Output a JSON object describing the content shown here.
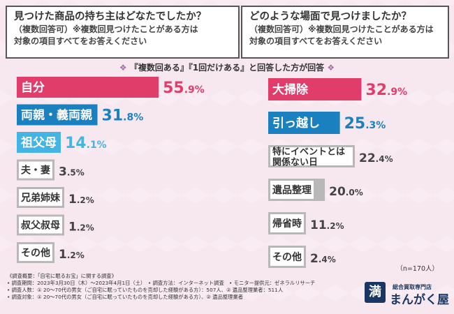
{
  "questions": {
    "left": {
      "line1": "見つけた商品の持ち主はどなたでしたか？",
      "line2": "（複数回答可）※複数回見つけたことがある方は",
      "line3": "対象の項目すべてをお答えください"
    },
    "right": {
      "line1": "どのような場面で見つけましたか？",
      "line2": "（複数回答可）※複数回見つけたことがある方は",
      "line3": "対象の項目すべてをお答えください"
    }
  },
  "subtitle": "『複数回ある』『1回だけある』と回答した方が回答",
  "chart_data": [
    {
      "type": "bar",
      "orientation": "horizontal",
      "title": "見つけた商品の持ち主はどなたでしたか？",
      "categories": [
        [
          "自分"
        ],
        [
          "両親・義両親"
        ],
        [
          "祖父母"
        ],
        [
          "夫・妻"
        ],
        [
          "兄弟姉妹"
        ],
        [
          "叔父叔母"
        ],
        [
          "その他"
        ]
      ],
      "values": [
        55.9,
        31.8,
        14.1,
        3.5,
        1.2,
        1.2,
        1.2
      ],
      "unit": "%",
      "xlim": [
        0,
        60
      ],
      "colors": [
        "#e03d6b",
        "#1a80c0",
        "#44b4e4",
        "#b8b8b8",
        "#b8b8b8",
        "#b8b8b8",
        "#b8b8b8"
      ]
    },
    {
      "type": "bar",
      "orientation": "horizontal",
      "title": "どのような場面で見つけましたか？",
      "categories": [
        [
          "大掃除"
        ],
        [
          "引っ越し"
        ],
        [
          "特にイベントとは",
          "関係ない日"
        ],
        [
          "遺品整理"
        ],
        [
          "帰省時"
        ],
        [
          "その他"
        ]
      ],
      "values": [
        32.9,
        25.3,
        22.4,
        20.0,
        11.2,
        2.4
      ],
      "unit": "%",
      "xlim": [
        0,
        36
      ],
      "colors": [
        "#e03d6b",
        "#1a80c0",
        "#b8b8b8",
        "#b8b8b8",
        "#b8b8b8",
        "#b8b8b8"
      ]
    }
  ],
  "sample_note": "（n=170人）",
  "footer": {
    "l1": "《調査概要：「自宅に眠るお宝」に関する調査》",
    "l2": "• 調査期間：2023年3月30日（木）～2023年4月1日（土）　• 調査方法：インターネット調査　• モニター提供元：ゼネラルリサーチ",
    "l3": "• 調査人数：① 20～70代の男女（ご自宅に眠っていたものを売却した経験がある方）：507人、② 遺品整理業者：511人",
    "l4": "• 調査対象：① 20～70代の男女（ご自宅に眠っていたものを売却した経験がある方）、② 遺品整理業者"
  },
  "logo": {
    "top": "総合買取専門店",
    "main": "まんがく屋",
    "mark": "満"
  }
}
